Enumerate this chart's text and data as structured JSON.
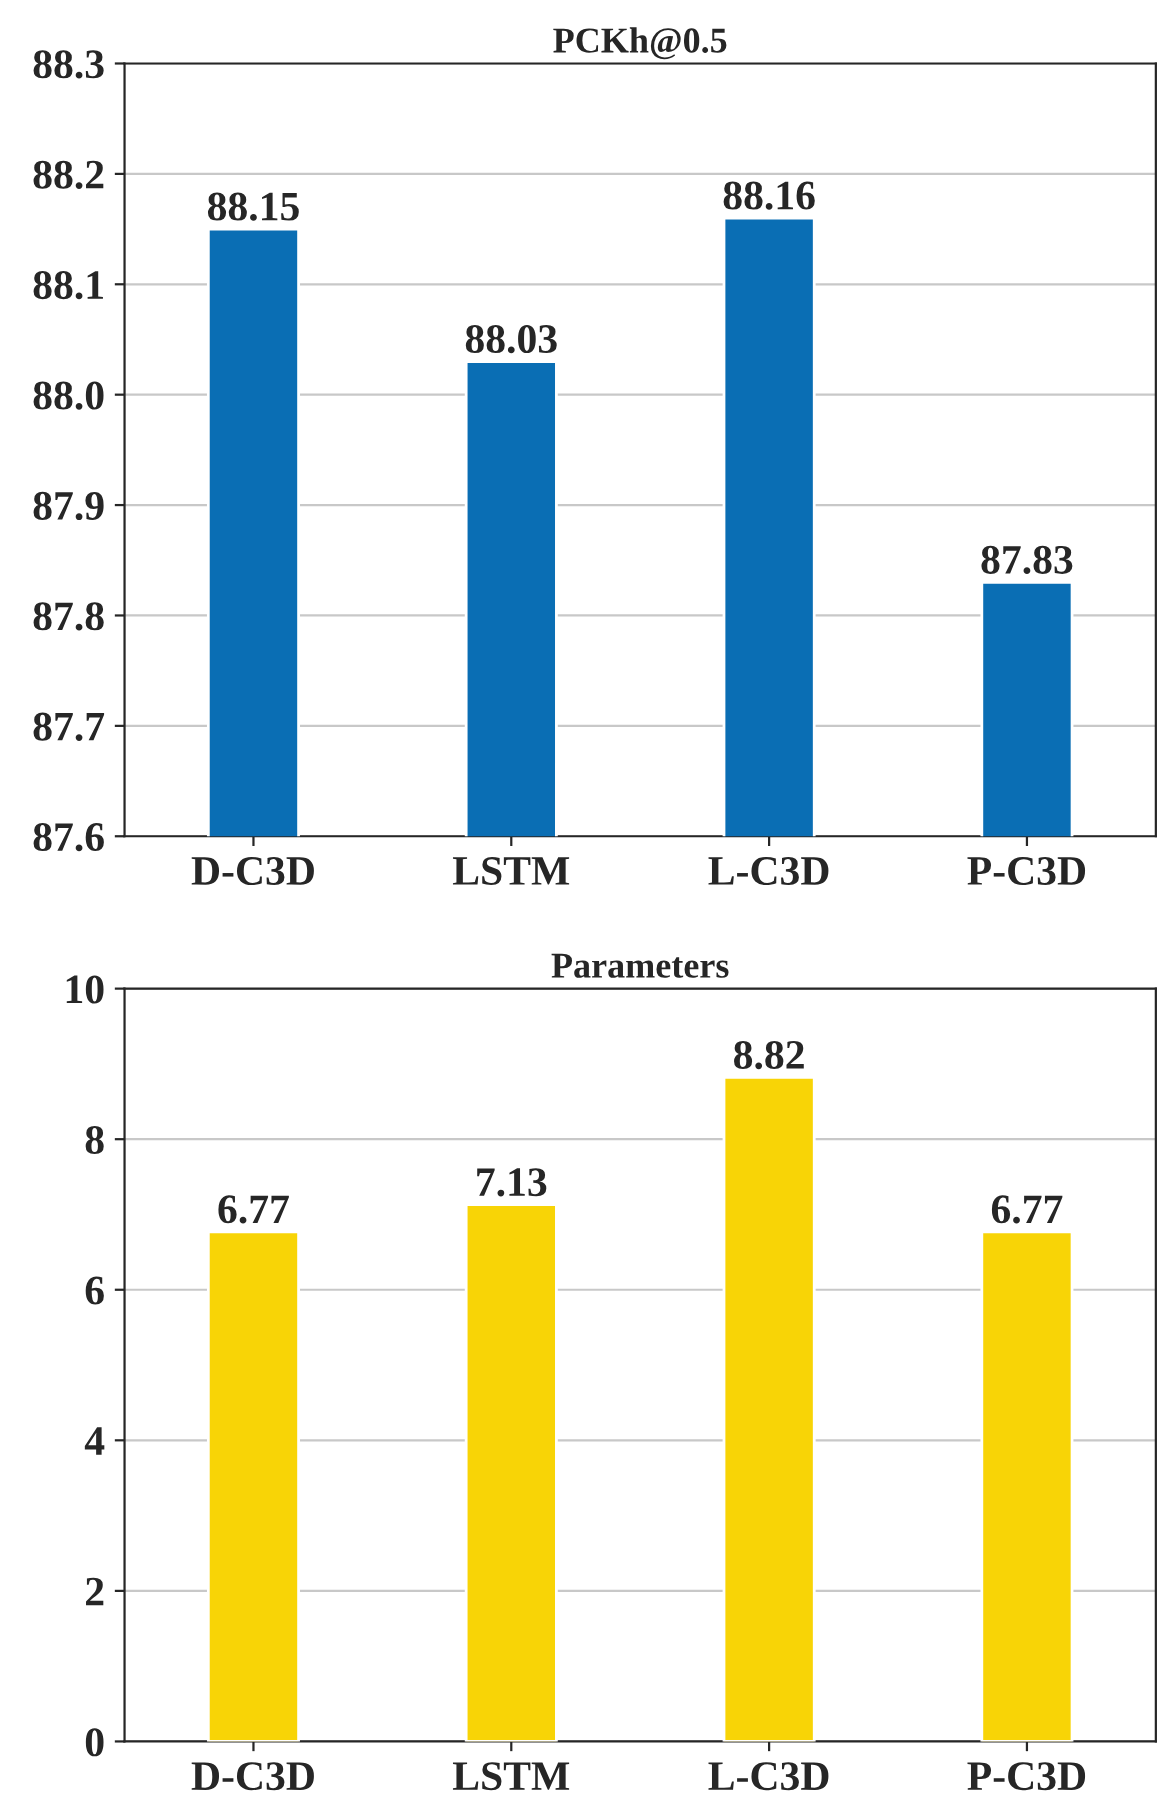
{
  "chart_data": [
    {
      "type": "bar",
      "title": "PCKh@0.5",
      "categories": [
        "D-C3D",
        "LSTM",
        "L-C3D",
        "P-C3D"
      ],
      "values": [
        88.15,
        88.03,
        88.16,
        87.83
      ],
      "color": "#0a6eb4",
      "ylim": [
        87.6,
        88.3
      ],
      "yticks": [
        {
          "value": 87.6,
          "label": "87.6"
        },
        {
          "value": 87.7,
          "label": "87.7"
        },
        {
          "value": 87.8,
          "label": "87.8"
        },
        {
          "value": 87.9,
          "label": "87.9"
        },
        {
          "value": 88.0,
          "label": "88.0"
        },
        {
          "value": 88.1,
          "label": "88.1"
        },
        {
          "value": 88.2,
          "label": "88.2"
        },
        {
          "value": 88.3,
          "label": "88.3"
        }
      ],
      "grid": "y",
      "data_labels": true
    },
    {
      "type": "bar",
      "title": "Parameters",
      "categories": [
        "D-C3D",
        "LSTM",
        "L-C3D",
        "P-C3D"
      ],
      "values": [
        6.77,
        7.13,
        8.82,
        6.77
      ],
      "color": "#f8d406",
      "ylim": [
        0,
        10
      ],
      "yticks": [
        0,
        2,
        4,
        6,
        8,
        10
      ],
      "grid": "y",
      "data_labels": true
    }
  ]
}
